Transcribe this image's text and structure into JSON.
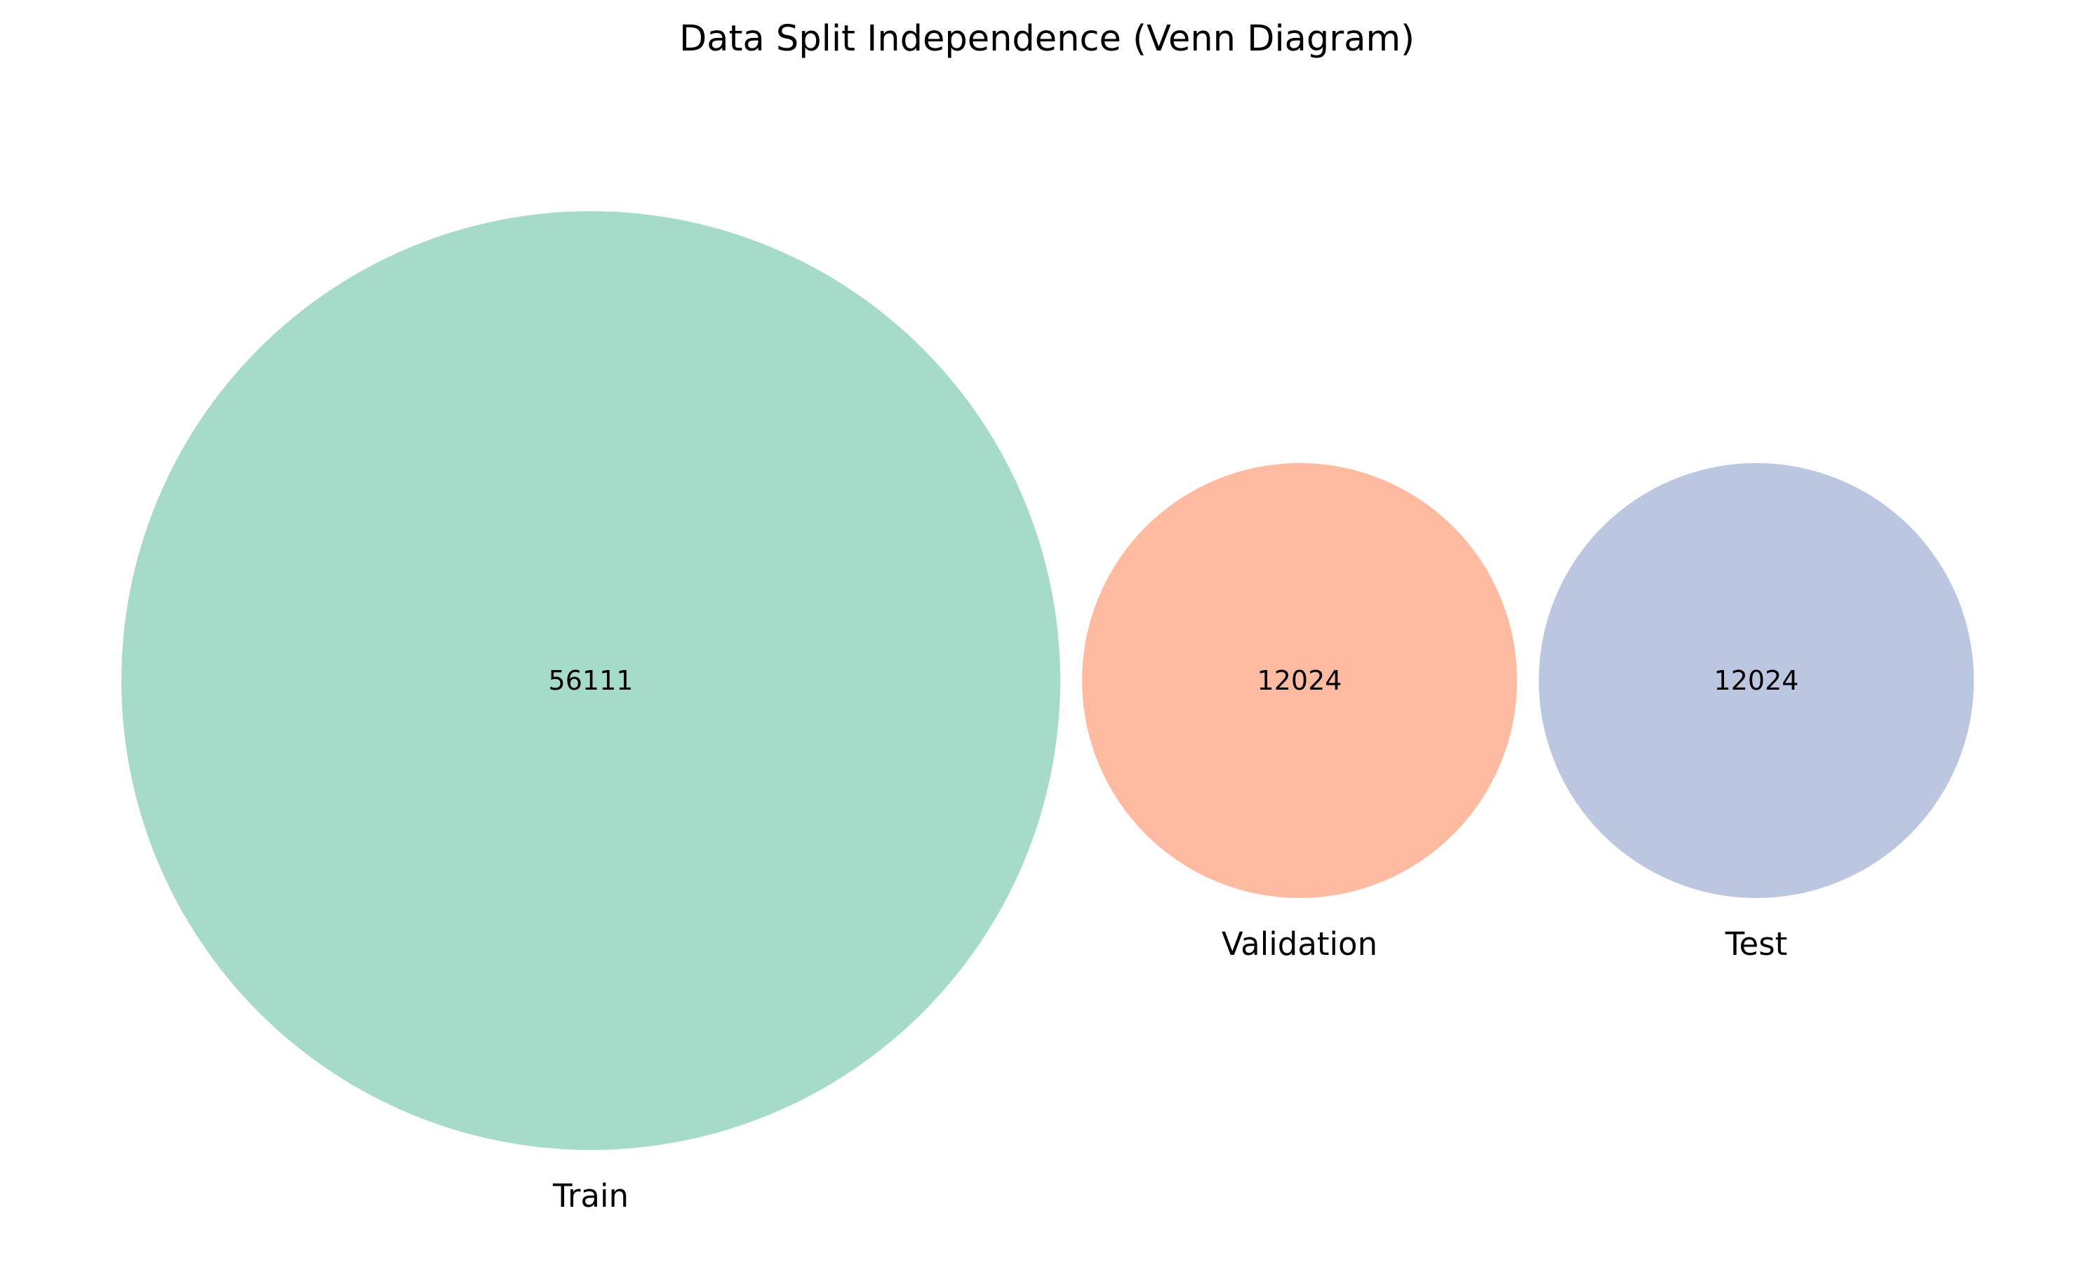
{
  "diagram": {
    "title": "Data Split Independence (Venn Diagram)",
    "type": "venn-3-sets",
    "sets": [
      {
        "key": "train",
        "label": "Train",
        "count": "56111",
        "color": "#a6dac9"
      },
      {
        "key": "validation",
        "label": "Validation",
        "count": "12024",
        "color": "#ffbba2"
      },
      {
        "key": "test",
        "label": "Test",
        "count": "12024",
        "color": "#bbc6e0"
      }
    ]
  }
}
